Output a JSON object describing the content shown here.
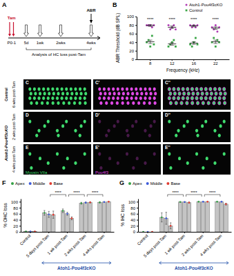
{
  "panels": {
    "A": {
      "letter": "A",
      "tam": "Tam",
      "start": "P0-1",
      "timepoints": [
        "5d",
        "1wk",
        "2wks",
        "4wks"
      ],
      "end": "ABR",
      "caption": "Analysis of HC loss post-Tam"
    },
    "images": {
      "rows": [
        {
          "letters": [
            "C",
            "C'",
            "C''"
          ],
          "labels": [
            "Control",
            "6 wks post-Tam"
          ]
        },
        {
          "letters": [
            "D",
            "D'",
            "D''"
          ],
          "labels": [
            "2 wks post-Tam"
          ]
        },
        {
          "letters": [
            "E",
            "E'",
            "E''"
          ],
          "labels": [
            "4 wks post-Tam"
          ]
        }
      ],
      "group": "Atoh1-Pou4f3cKO",
      "stains": [
        "Myosin VIIa",
        "Pou4f3"
      ]
    }
  },
  "chart_data": [
    {
      "type": "dot",
      "panel_label": "B",
      "x_label": "Frequency (kHz)",
      "y_label": "ABR Threshold (dB SPL)",
      "categories": [
        "8",
        "12",
        "16",
        "22"
      ],
      "ylim": [
        0,
        100
      ],
      "yticks": [
        0,
        20,
        40,
        60,
        80,
        100
      ],
      "legend": "top-right",
      "series": [
        {
          "name": "Atoh1-Pou4f3cKO",
          "color": "#b03cb5",
          "marker": "circle",
          "values": [
            79,
            75,
            78,
            73
          ],
          "errors": [
            2,
            3,
            2,
            3
          ],
          "points": [
            [
              80,
              80,
              80,
              75,
              80
            ],
            [
              80,
              70,
              75,
              80,
              70
            ],
            [
              80,
              75,
              80,
              75,
              80
            ],
            [
              75,
              70,
              80,
              65,
              75
            ]
          ]
        },
        {
          "name": "Control",
          "color": "#3aa646",
          "marker": "square",
          "values": [
            41,
            36,
            38,
            41
          ],
          "errors": [
            4,
            3,
            3,
            4
          ],
          "points": [
            [
              40,
              45,
              30,
              55,
              35
            ],
            [
              30,
              35,
              40,
              45,
              30
            ],
            [
              35,
              30,
              40,
              50,
              35
            ],
            [
              40,
              50,
              30,
              45,
              40
            ]
          ]
        }
      ],
      "annotations": [
        {
          "text": "****",
          "category": "8"
        },
        {
          "text": "****",
          "category": "12"
        },
        {
          "text": "****",
          "category": "16"
        },
        {
          "text": "****",
          "category": "22"
        }
      ]
    },
    {
      "type": "bar",
      "panel_label": "F",
      "y_label": "% OHC loss",
      "categories": [
        "Control",
        "5 days post-Tam",
        "1 wk post-Tam",
        "2 wks post-Tam",
        "4 wks post-Tam"
      ],
      "ylim": [
        0,
        110
      ],
      "yticks": [
        0,
        20,
        40,
        60,
        80,
        100
      ],
      "legend": "top",
      "series": [
        {
          "name": "Apex",
          "color": "#35a046",
          "values": [
            1,
            63,
            70,
            95,
            98
          ],
          "errors": [
            1,
            8,
            6,
            3,
            2
          ]
        },
        {
          "name": "Middle",
          "color": "#3d5bd9",
          "values": [
            1,
            58,
            60,
            97,
            99
          ],
          "errors": [
            1,
            10,
            5,
            2,
            1
          ]
        },
        {
          "name": "Base",
          "color": "#e03c31",
          "values": [
            1,
            57,
            45,
            98,
            100
          ],
          "errors": [
            1,
            12,
            5,
            2,
            0
          ]
        }
      ],
      "annotations": [
        {
          "text": "****",
          "between": [
            "5 days post-Tam",
            "1 wk post-Tam"
          ]
        },
        {
          "text": "****",
          "between": [
            "1 wk post-Tam",
            "2 wks post-Tam"
          ]
        },
        {
          "text": "****",
          "between": [
            "2 wks post-Tam",
            "4 wks post-Tam"
          ]
        }
      ],
      "group_label": "Atoh1-Pou4f3cKO",
      "group_categories": [
        "5 days post-Tam",
        "1 wk post-Tam",
        "2 wks post-Tam",
        "4 wks post-Tam"
      ]
    },
    {
      "type": "bar",
      "panel_label": "G",
      "y_label": "% IHC loss",
      "categories": [
        "Control",
        "5 days post-Tam",
        "1 wk post-Tam",
        "2 wks post-Tam",
        "4 wks post-Tam"
      ],
      "ylim": [
        0,
        110
      ],
      "yticks": [
        0,
        20,
        40,
        60,
        80,
        100
      ],
      "legend": "top",
      "series": [
        {
          "name": "Apex",
          "color": "#35a046",
          "values": [
            0,
            48,
            99,
            100,
            100
          ],
          "errors": [
            0,
            15,
            1,
            0,
            0
          ]
        },
        {
          "name": "Middle",
          "color": "#3d5bd9",
          "values": [
            0,
            45,
            99,
            100,
            100
          ],
          "errors": [
            0,
            20,
            1,
            0,
            0
          ]
        },
        {
          "name": "Base",
          "color": "#e03c31",
          "values": [
            0,
            20,
            97,
            100,
            92
          ],
          "errors": [
            0,
            10,
            2,
            0,
            3
          ]
        }
      ],
      "annotations": [
        {
          "text": "****",
          "between": [
            "5 days post-Tam",
            "1 wk post-Tam"
          ]
        },
        {
          "text": "****",
          "between": [
            "1 wk post-Tam",
            "2 wks post-Tam"
          ]
        },
        {
          "text": "****",
          "between": [
            "2 wks post-Tam",
            "4 wks post-Tam"
          ]
        }
      ],
      "group_label": "Atoh1-Pou4f3cKO",
      "group_categories": [
        "5 days post-Tam",
        "1 wk post-Tam",
        "2 wks post-Tam",
        "4 wks post-Tam"
      ]
    }
  ]
}
